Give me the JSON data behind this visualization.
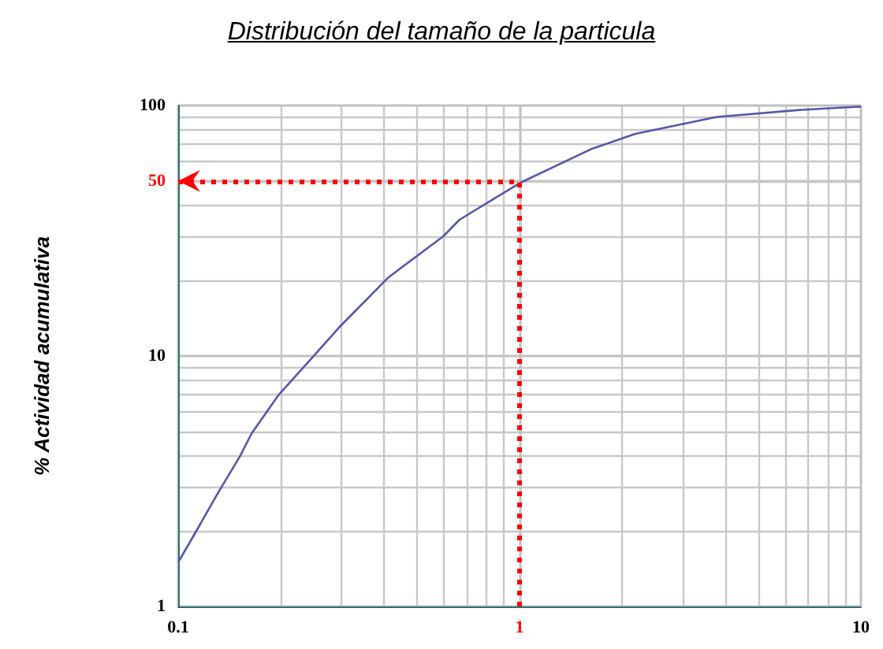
{
  "chart_data": {
    "type": "line",
    "title": "Distribución del tamaño de la particula",
    "ylabel": "% Actividad acumulativa",
    "series": [
      {
        "color": "#5558a8",
        "x": [
          0.1,
          0.113,
          0.13,
          0.152,
          0.164,
          0.197,
          0.246,
          0.296,
          0.413,
          0.597,
          0.667,
          1.0,
          1.62,
          2.18,
          3.78,
          6.6,
          9.6,
          10
        ],
        "values": [
          1.5,
          2.0,
          2.8,
          4.0,
          4.9,
          7.0,
          9.8,
          13,
          20.6,
          30,
          35,
          49,
          67,
          77,
          90,
          96,
          98.7,
          99
        ]
      }
    ],
    "log": "xy",
    "xlim": [
      0.1,
      10
    ],
    "xticks": [
      0.1,
      1,
      10
    ],
    "ylim": [
      1,
      100
    ],
    "yticks": [
      1,
      10,
      50,
      100
    ],
    "grid": true,
    "marker": "none",
    "line_style": "solid",
    "ref_lines": [
      {
        "axis": "y",
        "value": 50,
        "color": "#ff0000",
        "line_style": "dotted"
      },
      {
        "axis": "x",
        "value": 1,
        "color": "#ff0000",
        "line_style": "dotted"
      }
    ]
  }
}
